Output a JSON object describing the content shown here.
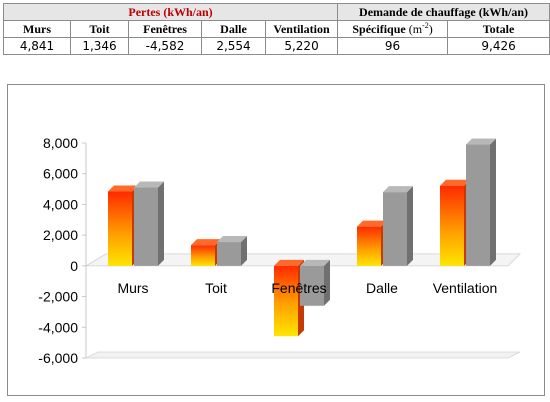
{
  "table": {
    "losses_header": "Pertes (kWh/an)",
    "demand_header": "Demande de chauffage (kWh/an)",
    "columns": [
      "Murs",
      "Toit",
      "Fenêtres",
      "Dalle",
      "Ventilation",
      "Spécifique",
      "Totale"
    ],
    "specific_unit": "(m",
    "specific_unit_exp": "-2",
    "specific_unit_close": ")",
    "values": [
      "4,841",
      "1,346",
      "-4,582",
      "2,554",
      "5,220",
      "96",
      "9,426"
    ]
  },
  "chart_data": {
    "type": "bar",
    "categories": [
      "Murs",
      "Toit",
      "Fenêtres",
      "Dalle",
      "Ventilation"
    ],
    "series": [
      {
        "values": [
          4841,
          1346,
          -4582,
          2554,
          5220
        ],
        "color": "#ff3b00"
      },
      {
        "values": [
          5100,
          1550,
          -2600,
          4800,
          7900
        ],
        "color": "#9a9a9a"
      }
    ],
    "ylim": [
      -6000,
      8000
    ],
    "yticks": [
      -6000,
      -4000,
      -2000,
      0,
      2000,
      4000,
      6000,
      8000
    ],
    "ytick_labels": [
      "-6,000",
      "-4,000",
      "-2,000",
      "0",
      "2,000",
      "4,000",
      "6,000",
      "8,000"
    ],
    "grid": false,
    "legend": "none"
  }
}
